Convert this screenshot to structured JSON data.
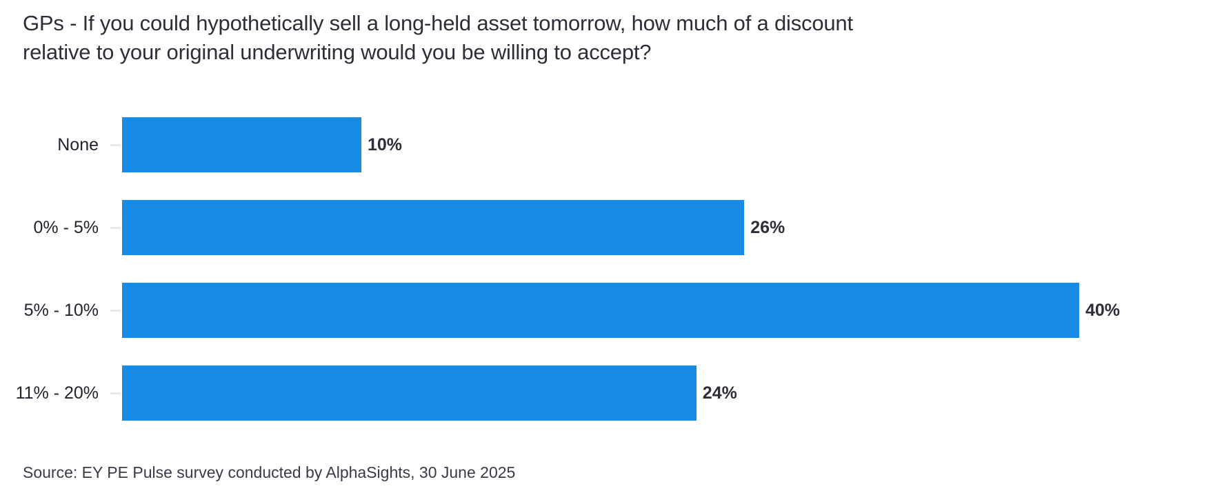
{
  "title": {
    "lines": [
      "GPs - If you could hypothetically sell a long-held asset tomorrow, how much of a discount",
      "relative to your original underwriting would you be willing to accept?"
    ]
  },
  "chart_data": {
    "type": "bar",
    "orientation": "horizontal",
    "title": "GPs - If you could hypothetically sell a long-held asset tomorrow, how much of a discount relative to your original underwriting would you be willing to accept?",
    "categories": [
      "None",
      "0% - 5%",
      "5% - 10%",
      "11% - 20%"
    ],
    "values": [
      10,
      26,
      40,
      24
    ],
    "value_labels": [
      "10%",
      "26%",
      "40%",
      "24%"
    ],
    "xlabel": "",
    "ylabel": "",
    "xlim": [
      0,
      40
    ],
    "grid": false,
    "legend": false,
    "bar_color": "#188CE5"
  },
  "source": "Source: EY PE Pulse survey conducted by AlphaSights, 30 June 2025",
  "colors": {
    "bar": "#188CE5",
    "title_text": "#2E2E38",
    "label_text": "#23232E",
    "value_text": "#2E2E38",
    "tick": "#E9E9ED",
    "background": "#FFFFFF"
  }
}
